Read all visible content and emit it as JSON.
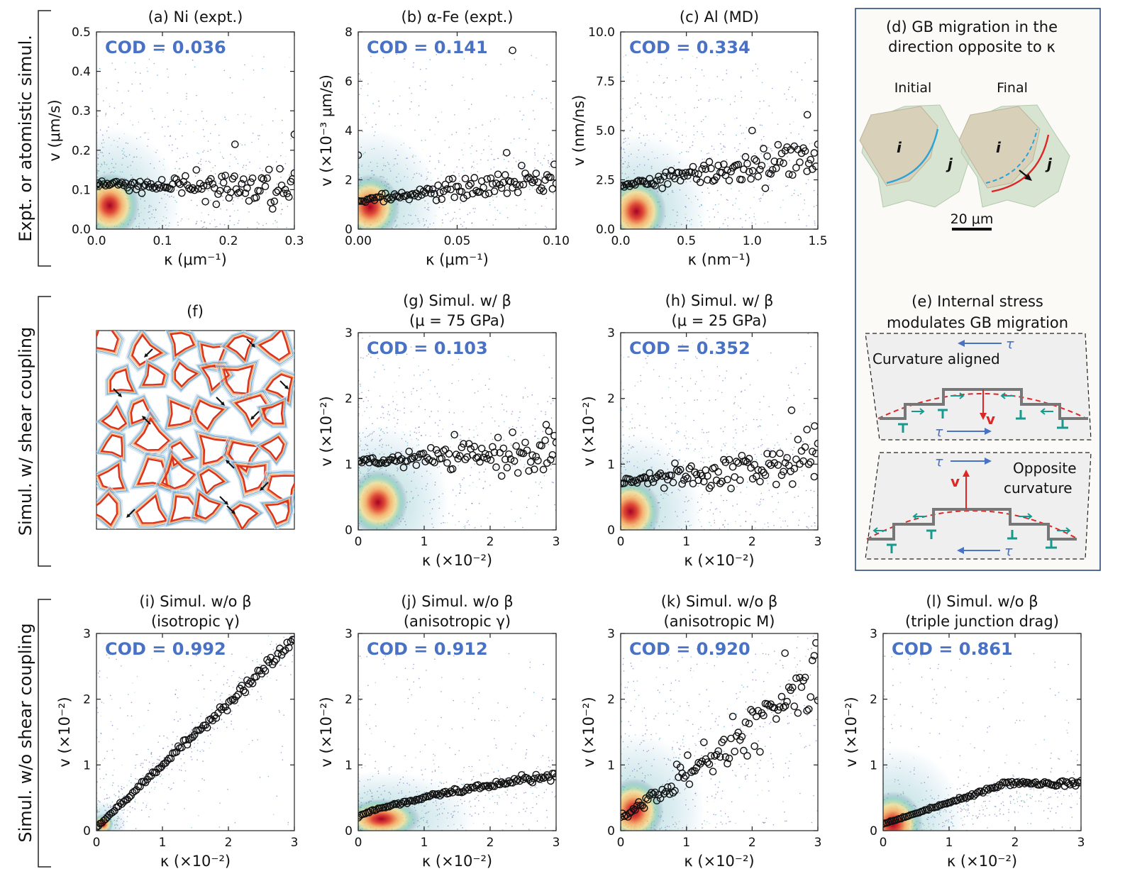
{
  "row_labels": [
    "Expt. or atomistic simul.",
    "Simul. w/ shear coupling",
    "Simul. w/o shear coupling"
  ],
  "chart_data": [
    {
      "id": "a",
      "type": "scatter",
      "title": "(a) Ni (expt.)",
      "xlabel": "κ (μm⁻¹)",
      "ylabel": "v (μm/s)",
      "xlim": [
        0,
        0.3
      ],
      "ylim": [
        0,
        0.5
      ],
      "xticks": [
        "0.0",
        "0.1",
        "0.2",
        "0.3"
      ],
      "yticks": [
        "0.0",
        "0.1",
        "0.2",
        "0.3",
        "0.4",
        "0.5"
      ],
      "cod": "COD = 0.036",
      "density_center": [
        0.02,
        0.06
      ],
      "trend": {
        "start": 0.115,
        "end": 0.1,
        "noise": 0.04
      },
      "outliers": [
        [
          0.21,
          0.215
        ],
        [
          0.3,
          0.24
        ]
      ]
    },
    {
      "id": "b",
      "type": "scatter",
      "title": "(b) α-Fe (expt.)",
      "xlabel": "κ (μm⁻¹)",
      "ylabel": "v (×10⁻³ μm/s)",
      "xlim": [
        0,
        0.1
      ],
      "ylim": [
        0,
        8
      ],
      "xticks": [
        "0.00",
        "0.05",
        "0.10"
      ],
      "yticks": [
        "0",
        "2",
        "4",
        "6",
        "8"
      ],
      "cod": "COD = 0.141",
      "density_center": [
        0.006,
        0.9
      ],
      "trend": {
        "start": 1.15,
        "end": 2.1,
        "noise": 0.5
      },
      "outliers": [
        [
          0.078,
          7.25
        ],
        [
          0.075,
          3.1
        ],
        [
          0.0,
          3.0
        ]
      ]
    },
    {
      "id": "c",
      "type": "scatter",
      "title": "(c) Al (MD)",
      "xlabel": "κ (nm⁻¹)",
      "ylabel": "v (nm/ns)",
      "xlim": [
        0,
        1.5
      ],
      "ylim": [
        0,
        10
      ],
      "xticks": [
        "0.0",
        "0.5",
        "1.0",
        "1.5"
      ],
      "yticks": [
        "0.0",
        "2.5",
        "5.0",
        "7.5",
        "10.0"
      ],
      "cod": "COD = 0.334",
      "density_center": [
        0.12,
        0.9
      ],
      "trend": {
        "start": 2.2,
        "end": 3.7,
        "noise": 0.9
      },
      "outliers": [
        [
          1.42,
          5.8
        ],
        [
          1.0,
          5.0
        ]
      ]
    },
    {
      "id": "g",
      "type": "scatter",
      "title": "(g) Simul. w/ β",
      "subtitle": "(μ = 75 GPa)",
      "xlabel": "κ (×10⁻²)",
      "ylabel": "v (×10⁻²)",
      "xlim": [
        0,
        3
      ],
      "ylim": [
        0,
        3
      ],
      "xticks": [
        "0",
        "1",
        "2",
        "3"
      ],
      "yticks": [
        "0",
        "1",
        "2",
        "3"
      ],
      "cod": "COD = 0.103",
      "density_center": [
        0.3,
        0.42
      ],
      "trend": {
        "start": 1.03,
        "end": 1.2,
        "noise": 0.25
      },
      "outliers": [
        [
          2.85,
          1.6
        ]
      ]
    },
    {
      "id": "h",
      "type": "scatter",
      "title": "(h) Simul. w/ β",
      "subtitle": "(μ = 25 GPa)",
      "xlabel": "κ (×10⁻²)",
      "ylabel": "v (×10⁻²)",
      "xlim": [
        0,
        3
      ],
      "ylim": [
        0,
        3
      ],
      "xticks": [
        "0",
        "1",
        "2",
        "3"
      ],
      "yticks": [
        "0",
        "1",
        "2",
        "3"
      ],
      "cod": "COD = 0.352",
      "density_center": [
        0.15,
        0.28
      ],
      "trend": {
        "start": 0.72,
        "end": 1.05,
        "noise": 0.3
      },
      "outliers": [
        [
          2.6,
          1.82
        ],
        [
          2.95,
          1.58
        ]
      ]
    },
    {
      "id": "i",
      "type": "scatter",
      "title": "(i) Simul. w/o β",
      "subtitle": "(isotropic γ)",
      "xlabel": "κ (×10⁻²)",
      "ylabel": "v (×10⁻²)",
      "xlim": [
        0,
        3
      ],
      "ylim": [
        0,
        3
      ],
      "xticks": [
        "0",
        "1",
        "2",
        "3"
      ],
      "yticks": [
        "0",
        "1",
        "2",
        "3"
      ],
      "cod": "COD = 0.992",
      "density_center": [
        0.1,
        0.1
      ],
      "trend": {
        "start": 0.05,
        "end": 2.9,
        "noise": 0.08
      },
      "outliers": []
    },
    {
      "id": "j",
      "type": "scatter",
      "title": "(j) Simul. w/o β",
      "subtitle": "(anisotropic γ)",
      "xlabel": "κ (×10⁻²)",
      "ylabel": "v (×10⁻²)",
      "xlim": [
        0,
        3
      ],
      "ylim": [
        0,
        3
      ],
      "xticks": [
        "0",
        "1",
        "2",
        "3"
      ],
      "yticks": [
        "0",
        "1",
        "2",
        "3"
      ],
      "cod": "COD = 0.912",
      "density_center": [
        0.35,
        0.18
      ],
      "trend": {
        "start": 0.2,
        "end": 0.85,
        "noise": 0.12
      },
      "outliers": []
    },
    {
      "id": "k",
      "type": "scatter",
      "title": "(k) Simul. w/o β",
      "subtitle": "(anisotropic M)",
      "xlabel": "κ (×10⁻²)",
      "ylabel": "v (×10⁻²)",
      "xlim": [
        0,
        3
      ],
      "ylim": [
        0,
        3
      ],
      "xticks": [
        "0",
        "1",
        "2",
        "3"
      ],
      "yticks": [
        "0",
        "1",
        "2",
        "3"
      ],
      "cod": "COD = 0.920",
      "density_center": [
        0.2,
        0.3
      ],
      "trend": {
        "start": 0.2,
        "end": 2.3,
        "noise": 0.35
      },
      "outliers": [
        [
          2.5,
          2.7
        ]
      ]
    },
    {
      "id": "l",
      "type": "scatter",
      "title": "(l) Simul. w/o β",
      "subtitle": "(triple junction drag)",
      "xlabel": "κ (×10⁻²)",
      "ylabel": "v (×10⁻²)",
      "xlim": [
        0,
        3
      ],
      "ylim": [
        0,
        3
      ],
      "xticks": [
        "0",
        "1",
        "2",
        "3"
      ],
      "yticks": [
        "0",
        "1",
        "2",
        "3"
      ],
      "cod": "COD = 0.861",
      "density_center": [
        0.15,
        0.1
      ],
      "trend": {
        "start": 0.1,
        "end": 0.72,
        "noise": 0.08
      },
      "outliers": []
    }
  ],
  "panel_f": {
    "title": "(f)"
  },
  "panel_d": {
    "title_line1": "(d) GB migration in the",
    "title_line2": "direction opposite to κ",
    "initial": "Initial",
    "final": "Final",
    "grain_i": "i",
    "grain_j": "j",
    "scale": "20 μm"
  },
  "panel_e": {
    "title_line1": "(e) Internal stress",
    "title_line2": "modulates GB migration",
    "aligned": "Curvature aligned",
    "opposite_1": "Opposite",
    "opposite_2": "curvature",
    "tau": "τ",
    "v": "v"
  }
}
